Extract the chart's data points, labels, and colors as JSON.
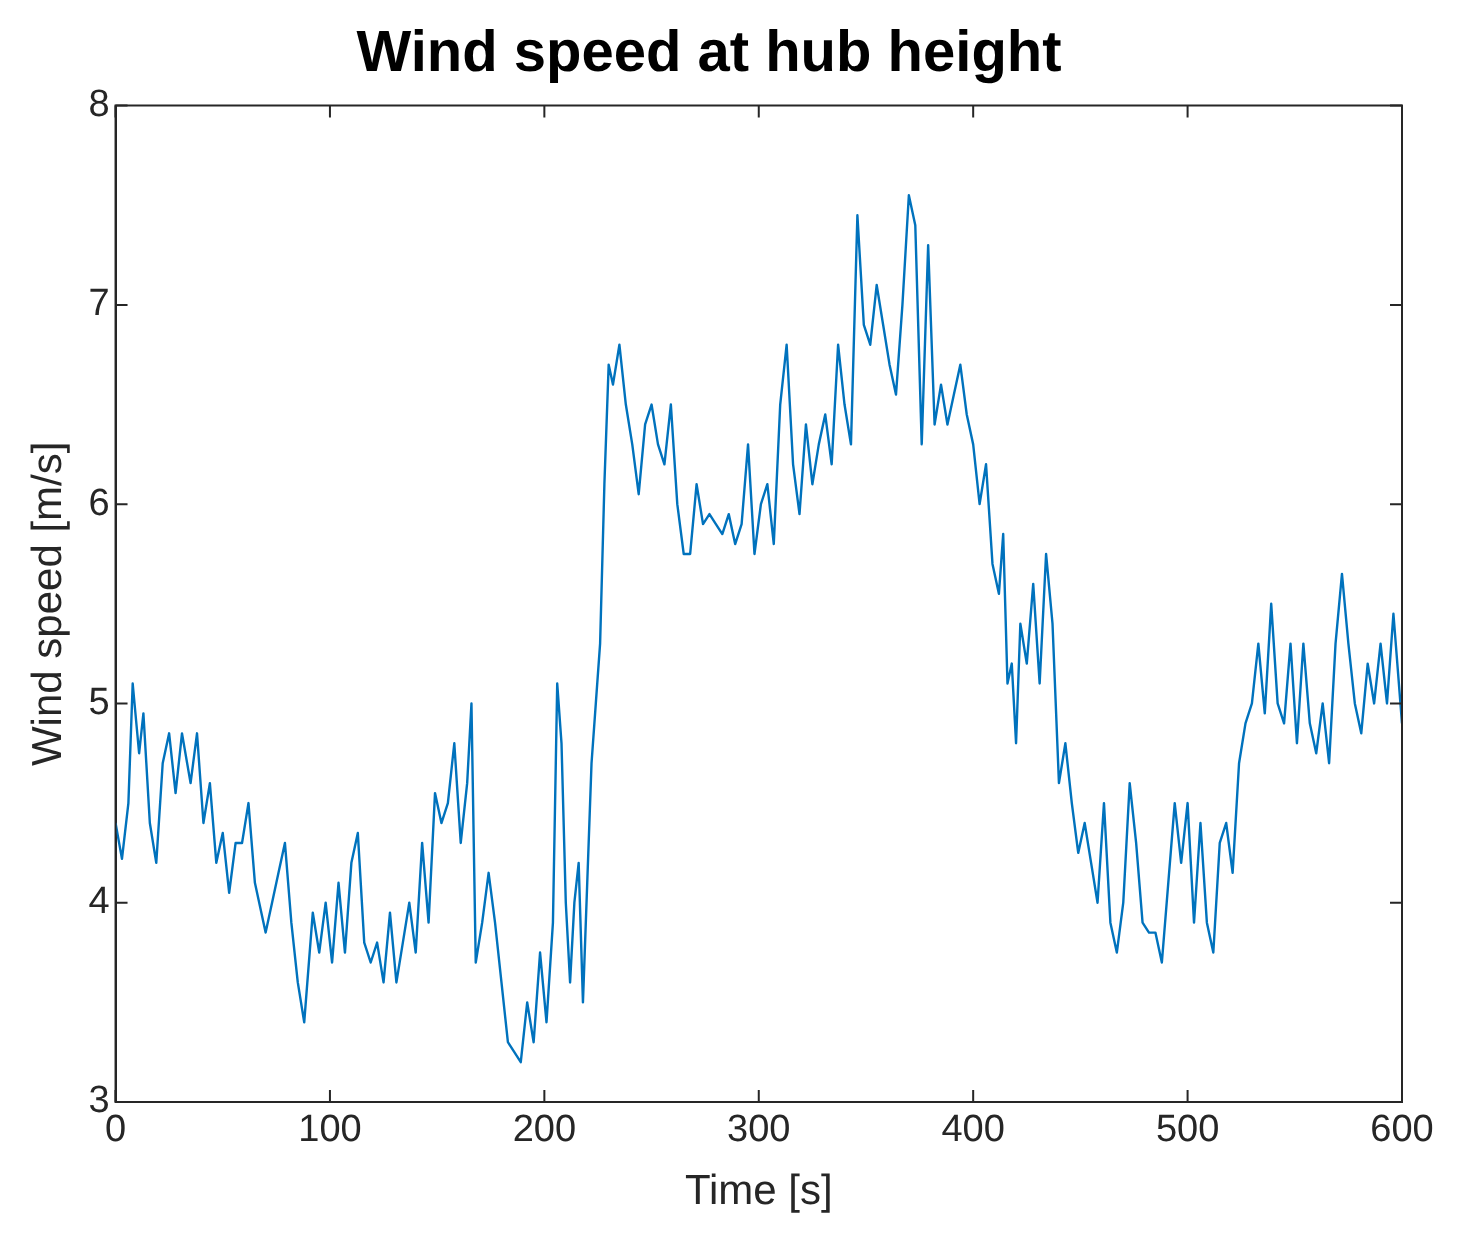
{
  "chart_data": {
    "type": "line",
    "title": "Wind speed at hub height",
    "xlabel": "Time [s]",
    "ylabel": "Wind speed [m/s]",
    "x": [
      0,
      3,
      6,
      8,
      11,
      13,
      16,
      19,
      22,
      25,
      28,
      31,
      35,
      38,
      41,
      44,
      47,
      50,
      53,
      56,
      59,
      62,
      65,
      70,
      73,
      76,
      79,
      82,
      85,
      88,
      92,
      95,
      98,
      101,
      104,
      107,
      110,
      113,
      116,
      119,
      122,
      125,
      128,
      131,
      134,
      137,
      140,
      143,
      146,
      149,
      152,
      155,
      158,
      161,
      164,
      166,
      168,
      171,
      174,
      177,
      180,
      183,
      186,
      189,
      192,
      195,
      198,
      201,
      204,
      206,
      208,
      210,
      212,
      214,
      216,
      218,
      220,
      222,
      224,
      226,
      228,
      230,
      232,
      235,
      238,
      241,
      244,
      247,
      250,
      253,
      256,
      259,
      262,
      265,
      268,
      271,
      274,
      277,
      280,
      283,
      286,
      289,
      292,
      295,
      298,
      301,
      304,
      307,
      310,
      313,
      316,
      319,
      322,
      325,
      328,
      331,
      334,
      337,
      340,
      343,
      346,
      349,
      352,
      355,
      358,
      361,
      364,
      367,
      370,
      373,
      376,
      379,
      382,
      385,
      388,
      391,
      394,
      397,
      400,
      403,
      406,
      409,
      412,
      414,
      416,
      418,
      420,
      422,
      425,
      428,
      431,
      434,
      437,
      440,
      443,
      446,
      449,
      452,
      455,
      458,
      461,
      464,
      467,
      470,
      473,
      476,
      479,
      482,
      485,
      488,
      491,
      494,
      497,
      500,
      503,
      506,
      509,
      512,
      515,
      518,
      521,
      524,
      527,
      530,
      533,
      536,
      539,
      542,
      545,
      548,
      551,
      554,
      557,
      560,
      563,
      566,
      569,
      572,
      575,
      578,
      581,
      584,
      587,
      590,
      593,
      596,
      600
    ],
    "series": [
      {
        "color": "#0072bd",
        "values": [
          4.4,
          4.22,
          4.5,
          5.1,
          4.75,
          4.95,
          4.4,
          4.2,
          4.7,
          4.85,
          4.55,
          4.85,
          4.6,
          4.85,
          4.4,
          4.6,
          4.2,
          4.35,
          4.05,
          4.3,
          4.3,
          4.5,
          4.1,
          3.85,
          4.0,
          4.15,
          4.3,
          3.9,
          3.6,
          3.4,
          3.95,
          3.75,
          4.0,
          3.7,
          4.1,
          3.75,
          4.2,
          4.35,
          3.8,
          3.7,
          3.8,
          3.6,
          3.95,
          3.6,
          3.8,
          4.0,
          3.75,
          4.3,
          3.9,
          4.55,
          4.4,
          4.5,
          4.8,
          4.3,
          4.6,
          5.0,
          3.7,
          3.9,
          4.15,
          3.9,
          3.6,
          3.3,
          3.25,
          3.2,
          3.5,
          3.3,
          3.75,
          3.4,
          3.9,
          5.1,
          4.8,
          4.0,
          3.6,
          4.0,
          4.2,
          3.5,
          4.1,
          4.7,
          5.0,
          5.3,
          6.1,
          6.7,
          6.6,
          6.8,
          6.5,
          6.3,
          6.05,
          6.4,
          6.5,
          6.3,
          6.2,
          6.5,
          6.0,
          5.75,
          5.75,
          6.1,
          5.9,
          5.95,
          5.9,
          5.85,
          5.95,
          5.8,
          5.9,
          6.3,
          5.75,
          6.0,
          6.1,
          5.8,
          6.5,
          6.8,
          6.2,
          5.95,
          6.4,
          6.1,
          6.3,
          6.45,
          6.2,
          6.8,
          6.5,
          6.3,
          7.45,
          6.9,
          6.8,
          7.1,
          6.9,
          6.7,
          6.55,
          7.0,
          7.55,
          7.4,
          6.3,
          7.3,
          6.4,
          6.6,
          6.4,
          6.55,
          6.7,
          6.45,
          6.3,
          6.0,
          6.2,
          5.7,
          5.55,
          5.85,
          5.1,
          5.2,
          4.8,
          5.4,
          5.2,
          5.6,
          5.1,
          5.75,
          5.4,
          4.6,
          4.8,
          4.5,
          4.25,
          4.4,
          4.2,
          4.0,
          4.5,
          3.9,
          3.75,
          4.0,
          4.6,
          4.3,
          3.9,
          3.85,
          3.85,
          3.7,
          4.1,
          4.5,
          4.2,
          4.5,
          3.9,
          4.4,
          3.9,
          3.75,
          4.3,
          4.4,
          4.15,
          4.7,
          4.9,
          5.0,
          5.3,
          4.95,
          5.5,
          5.0,
          4.9,
          5.3,
          4.8,
          5.3,
          4.9,
          4.75,
          5.0,
          4.7,
          5.3,
          5.65,
          5.3,
          5.0,
          4.85,
          5.2,
          5.0,
          5.3,
          5.0,
          5.45,
          4.9
        ]
      }
    ],
    "xlim": [
      0,
      600
    ],
    "xticks": [
      0,
      100,
      200,
      300,
      400,
      500,
      600
    ],
    "ylim": [
      3,
      8
    ],
    "yticks": [
      3,
      4,
      5,
      6,
      7,
      8
    ],
    "grid": false,
    "legend": false,
    "marker": "none",
    "line_style": "solid"
  }
}
